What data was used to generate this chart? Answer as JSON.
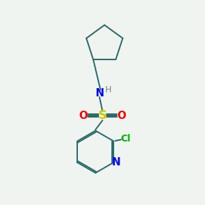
{
  "background_color": "#f0f4f0",
  "bond_color": "#2d6b6b",
  "nitrogen_color": "#0000ff",
  "oxygen_color": "#ff0000",
  "sulfur_color": "#cccc00",
  "chlorine_color": "#00bb00",
  "h_color": "#808080",
  "line_width": 1.5,
  "figsize": [
    3.0,
    3.0
  ],
  "dpi": 100,
  "xlim": [
    0,
    10
  ],
  "ylim": [
    0,
    10
  ]
}
